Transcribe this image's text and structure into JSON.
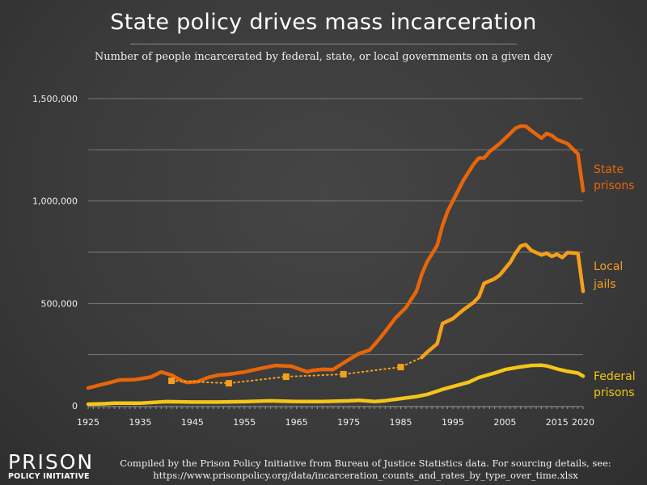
{
  "chart_data": {
    "type": "line",
    "title": "State policy drives mass incarceration",
    "subtitle": "Number of people incarcerated by federal, state, or local governments on a given day",
    "xlabel": "",
    "ylabel": "",
    "xlim": [
      1925,
      2020
    ],
    "ylim": [
      0,
      1500000
    ],
    "x_ticks": [
      "1925",
      "1935",
      "1945",
      "1955",
      "1965",
      "1975",
      "1985",
      "1995",
      "2005",
      "2015",
      "2020"
    ],
    "y_ticks": [
      "1,500,000",
      "1,000,000",
      "500,000",
      "0"
    ],
    "grid": "horizontal, every 250,000",
    "legend": "direct labels at right end of lines",
    "series": [
      {
        "name": "State prisons",
        "color": "#e8650a",
        "points": [
          [
            1925,
            87000
          ],
          [
            1927,
            100000
          ],
          [
            1929,
            112000
          ],
          [
            1931,
            126000
          ],
          [
            1934,
            128000
          ],
          [
            1937,
            140000
          ],
          [
            1939,
            165000
          ],
          [
            1941,
            150000
          ],
          [
            1943,
            122000
          ],
          [
            1944,
            114000
          ],
          [
            1946,
            118000
          ],
          [
            1948,
            138000
          ],
          [
            1950,
            150000
          ],
          [
            1952,
            154000
          ],
          [
            1955,
            165000
          ],
          [
            1958,
            182000
          ],
          [
            1961,
            197000
          ],
          [
            1964,
            193000
          ],
          [
            1967,
            166000
          ],
          [
            1968,
            172000
          ],
          [
            1970,
            178000
          ],
          [
            1972,
            177000
          ],
          [
            1973,
            193000
          ],
          [
            1975,
            225000
          ],
          [
            1977,
            255000
          ],
          [
            1979,
            272000
          ],
          [
            1980,
            300000
          ],
          [
            1981,
            330000
          ],
          [
            1982,
            362000
          ],
          [
            1984,
            429000
          ],
          [
            1986,
            480000
          ],
          [
            1988,
            559000
          ],
          [
            1989,
            640000
          ],
          [
            1990,
            700000
          ],
          [
            1992,
            783000
          ],
          [
            1993,
            880000
          ],
          [
            1994,
            950000
          ],
          [
            1995,
            1000000
          ],
          [
            1997,
            1100000
          ],
          [
            1999,
            1180000
          ],
          [
            2000,
            1210000
          ],
          [
            2001,
            1210000
          ],
          [
            2002,
            1240000
          ],
          [
            2004,
            1280000
          ],
          [
            2006,
            1330000
          ],
          [
            2007,
            1355000
          ],
          [
            2008,
            1366000
          ],
          [
            2009,
            1365000
          ],
          [
            2010,
            1345000
          ],
          [
            2012,
            1307000
          ],
          [
            2013,
            1330000
          ],
          [
            2014,
            1320000
          ],
          [
            2015,
            1300000
          ],
          [
            2017,
            1280000
          ],
          [
            2018,
            1255000
          ],
          [
            2019,
            1230000
          ],
          [
            2020,
            1050000
          ]
        ],
        "label": [
          "State",
          "prisons"
        ]
      },
      {
        "name": "Local jails",
        "color": "#f5a01a",
        "dotted_points": [
          [
            1941,
            122000
          ],
          [
            1952,
            110000
          ],
          [
            1963,
            142000
          ],
          [
            1974,
            154000
          ],
          [
            1985,
            189000
          ],
          [
            1989,
            236000
          ]
        ],
        "points": [
          [
            1989,
            236000
          ],
          [
            1990,
            260000
          ],
          [
            1992,
            303000
          ],
          [
            1993,
            402000
          ],
          [
            1995,
            425000
          ],
          [
            1997,
            468000
          ],
          [
            1999,
            505000
          ],
          [
            2000,
            532000
          ],
          [
            2001,
            598000
          ],
          [
            2003,
            620000
          ],
          [
            2004,
            638000
          ],
          [
            2006,
            700000
          ],
          [
            2007,
            744000
          ],
          [
            2008,
            780000
          ],
          [
            2009,
            787000
          ],
          [
            2010,
            760000
          ],
          [
            2012,
            736000
          ],
          [
            2013,
            745000
          ],
          [
            2014,
            730000
          ],
          [
            2015,
            740000
          ],
          [
            2016,
            724000
          ],
          [
            2017,
            748000
          ],
          [
            2019,
            744000
          ],
          [
            2020,
            559000
          ]
        ],
        "label": [
          "Local",
          "jails"
        ]
      },
      {
        "name": "Federal prisons",
        "color": "#f5c518",
        "points": [
          [
            1925,
            8000
          ],
          [
            1928,
            10000
          ],
          [
            1930,
            13000
          ],
          [
            1935,
            13000
          ],
          [
            1940,
            20000
          ],
          [
            1945,
            18000
          ],
          [
            1950,
            18000
          ],
          [
            1955,
            20000
          ],
          [
            1960,
            24000
          ],
          [
            1965,
            21000
          ],
          [
            1970,
            21000
          ],
          [
            1975,
            24000
          ],
          [
            1977,
            27000
          ],
          [
            1980,
            21000
          ],
          [
            1982,
            25000
          ],
          [
            1985,
            35000
          ],
          [
            1988,
            45000
          ],
          [
            1990,
            55000
          ],
          [
            1993,
            80000
          ],
          [
            1995,
            94000
          ],
          [
            1998,
            115000
          ],
          [
            2000,
            138000
          ],
          [
            2003,
            160000
          ],
          [
            2005,
            177000
          ],
          [
            2008,
            190000
          ],
          [
            2010,
            197000
          ],
          [
            2012,
            198000
          ],
          [
            2013,
            195000
          ],
          [
            2015,
            180000
          ],
          [
            2017,
            168000
          ],
          [
            2019,
            160000
          ],
          [
            2020,
            145000
          ]
        ],
        "label": [
          "Federal",
          "prisons"
        ]
      }
    ]
  },
  "footer": {
    "logo": [
      "PRISON",
      "POLICY INITIATIVE"
    ],
    "credit_line1": "Compiled by the Prison Policy Initiative from Bureau of Justice Statistics data. For sourcing details, see:",
    "credit_line2": "https://www.prisonpolicy.org/data/incarceration_counts_and_rates_by_type_over_time.xlsx"
  }
}
